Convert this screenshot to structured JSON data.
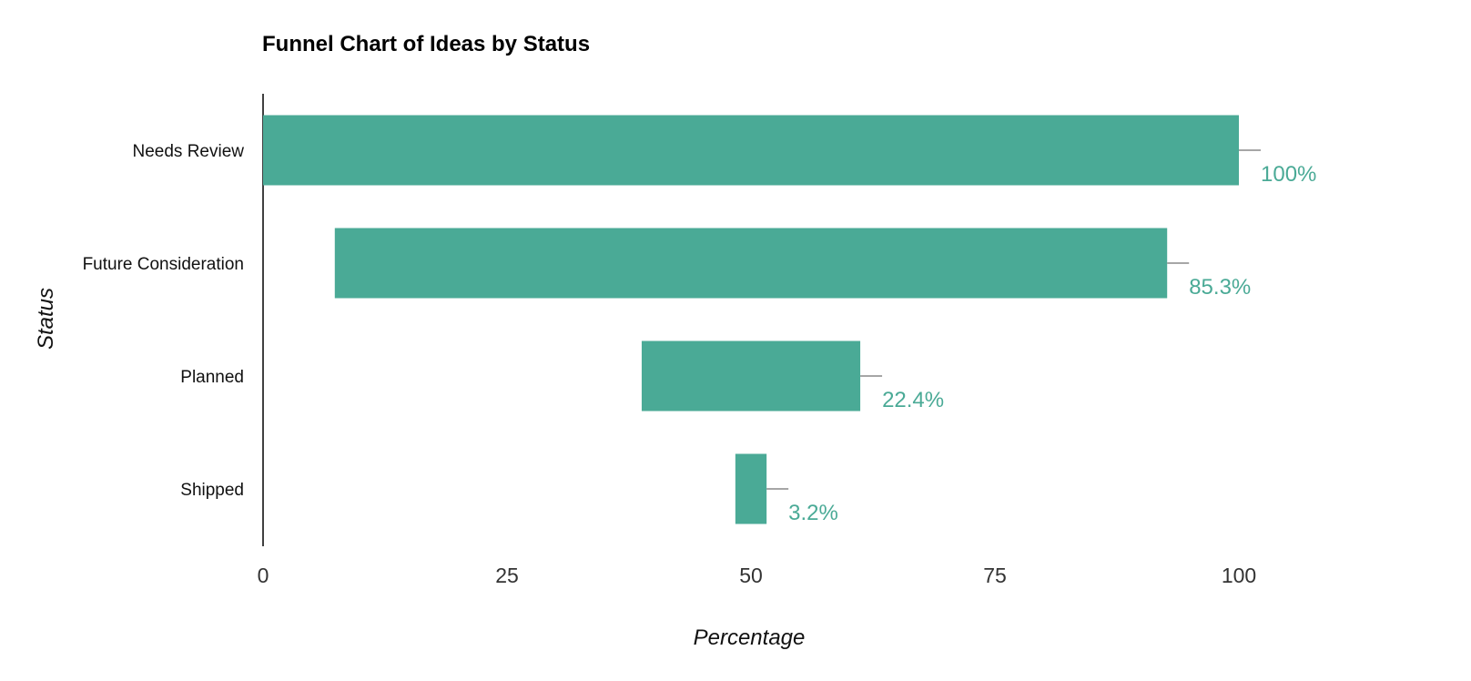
{
  "chart_data": {
    "type": "bar",
    "subtype": "funnel",
    "title": "Funnel Chart of Ideas by Status",
    "xlabel": "Percentage",
    "ylabel": "Status",
    "xlim": [
      0,
      100
    ],
    "xticks": [
      0,
      25,
      50,
      75,
      100
    ],
    "categories": [
      "Needs Review",
      "Future Consideration",
      "Planned",
      "Shipped"
    ],
    "values": [
      100,
      85.3,
      22.4,
      3.2
    ],
    "labels": [
      "100%",
      "85.3%",
      "22.4%",
      "3.2%"
    ],
    "grid": false,
    "legend": "none",
    "colors": {
      "bar": "#4aaa96",
      "label": "#4aaa96",
      "leader": "#888888",
      "axis": "#000000"
    }
  }
}
